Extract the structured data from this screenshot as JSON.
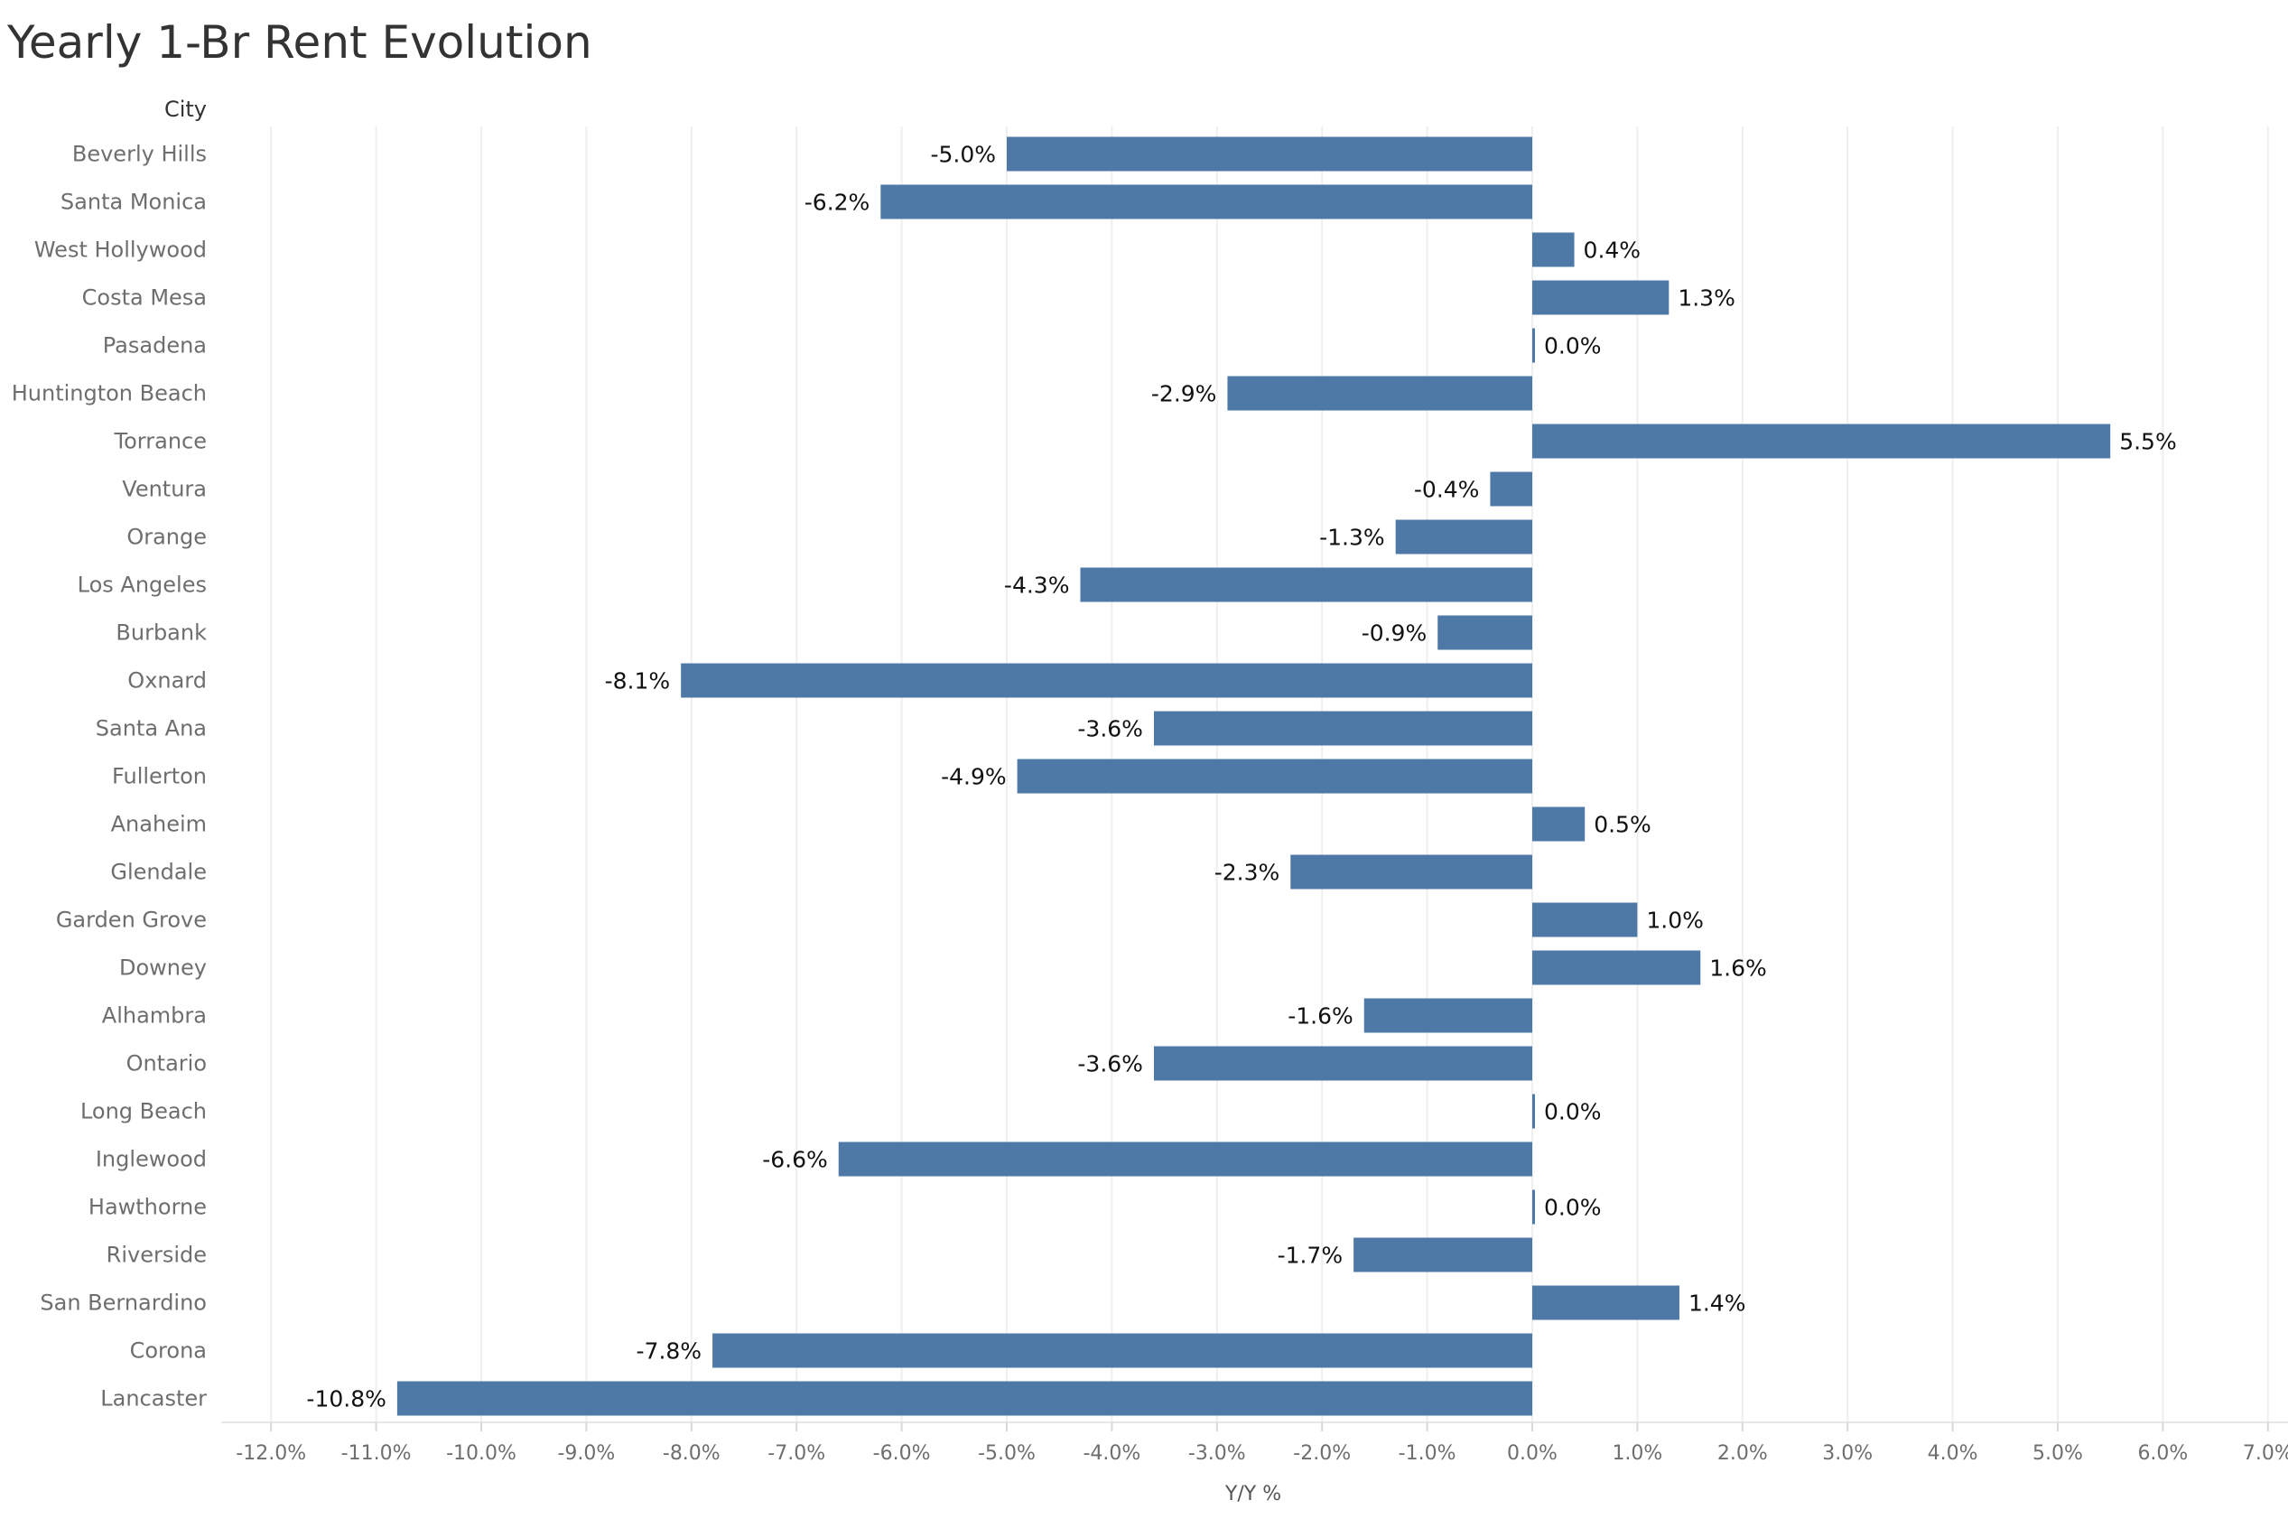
{
  "chart_data": {
    "type": "bar",
    "orientation": "horizontal",
    "title": "Yearly 1-Br Rent Evolution",
    "category_header": "City",
    "xlabel": "Y/Y %",
    "xlim": [
      -12.4,
      7.2
    ],
    "xticks": [
      -12,
      -11,
      -10,
      -9,
      -8,
      -7,
      -6,
      -5,
      -4,
      -3,
      -2,
      -1,
      0,
      1,
      2,
      3,
      4,
      5,
      6,
      7
    ],
    "xtick_labels": [
      "-12.0%",
      "-11.0%",
      "-10.0%",
      "-9.0%",
      "-8.0%",
      "-7.0%",
      "-6.0%",
      "-5.0%",
      "-4.0%",
      "-3.0%",
      "-2.0%",
      "-1.0%",
      "0.0%",
      "1.0%",
      "2.0%",
      "3.0%",
      "4.0%",
      "5.0%",
      "6.0%",
      "7.0%"
    ],
    "grid": true,
    "bar_color": "#4e79a7",
    "categories": [
      "Beverly Hills",
      "Santa Monica",
      "West Hollywood",
      "Costa Mesa",
      "Pasadena",
      "Huntington Beach",
      "Torrance",
      "Ventura",
      "Orange",
      "Los Angeles",
      "Burbank",
      "Oxnard",
      "Santa Ana",
      "Fullerton",
      "Anaheim",
      "Glendale",
      "Garden Grove",
      "Downey",
      "Alhambra",
      "Ontario",
      "Long Beach",
      "Inglewood",
      "Hawthorne",
      "Riverside",
      "San Bernardino",
      "Corona",
      "Lancaster"
    ],
    "values": [
      -5.0,
      -6.2,
      0.4,
      1.3,
      0.0,
      -2.9,
      5.5,
      -0.4,
      -1.3,
      -4.3,
      -0.9,
      -8.1,
      -3.6,
      -4.9,
      0.5,
      -2.3,
      1.0,
      1.6,
      -1.6,
      -3.6,
      0.0,
      -6.6,
      0.0,
      -1.7,
      1.4,
      -7.8,
      -10.8
    ],
    "value_labels": [
      "-5.0%",
      "-6.2%",
      "0.4%",
      "1.3%",
      "0.0%",
      "-2.9%",
      "5.5%",
      "-0.4%",
      "-1.3%",
      "-4.3%",
      "-0.9%",
      "-8.1%",
      "-3.6%",
      "-4.9%",
      "0.5%",
      "-2.3%",
      "1.0%",
      "1.6%",
      "-1.6%",
      "-3.6%",
      "0.0%",
      "-6.6%",
      "0.0%",
      "-1.7%",
      "1.4%",
      "-7.8%",
      "-10.8%"
    ]
  }
}
